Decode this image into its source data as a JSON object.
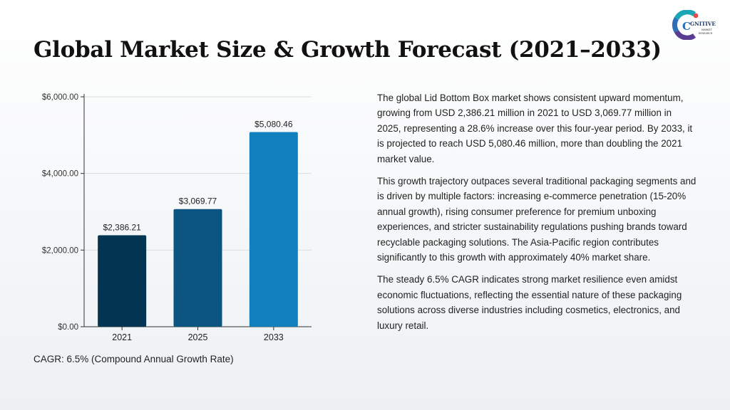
{
  "title": "Global Market Size & Growth Forecast (2021–2033)",
  "logo": {
    "letter": "C",
    "word": "GNITIVE",
    "line1": "MARKET",
    "line2": "RESEARCH",
    "colors": [
      "#1aa6b7",
      "#2e6fb7",
      "#5a3c91",
      "#e54b4b"
    ]
  },
  "chart_data": {
    "type": "bar",
    "categories": [
      "2021",
      "2025",
      "2033"
    ],
    "values": [
      2386.21,
      3069.77,
      5080.46
    ],
    "value_labels": [
      "$2,386.21",
      "$3,069.77",
      "$5,080.46"
    ],
    "y_ticks": [
      0,
      2000,
      4000,
      6000
    ],
    "y_tick_labels": [
      "$0.00",
      "$2,000.00",
      "$4,000.00",
      "$6,000.00"
    ],
    "ylim": [
      0,
      6000
    ],
    "bar_colors": [
      "#033451",
      "#0b5580",
      "#1180bd"
    ],
    "grid": true
  },
  "caption": "CAGR: 6.5% (Compound Annual Growth Rate)",
  "paragraphs": [
    "The global Lid Bottom Box market shows consistent upward momentum, growing from USD 2,386.21 million in 2021 to USD 3,069.77 million in 2025, representing a 28.6% increase over this four-year period. By 2033, it is projected to reach USD 5,080.46 million, more than doubling the 2021 market value.",
    "This growth trajectory outpaces several traditional packaging segments and is driven by multiple factors: increasing e-commerce penetration (15-20% annual growth), rising consumer preference for premium unboxing experiences, and stricter sustainability regulations pushing brands toward recyclable packaging solutions. The Asia-Pacific region contributes significantly to this growth with approximately 40% market share.",
    "The steady 6.5% CAGR indicates strong market resilience even amidst economic fluctuations, reflecting the essential nature of these packaging solutions across diverse industries including cosmetics, electronics, and luxury retail."
  ]
}
